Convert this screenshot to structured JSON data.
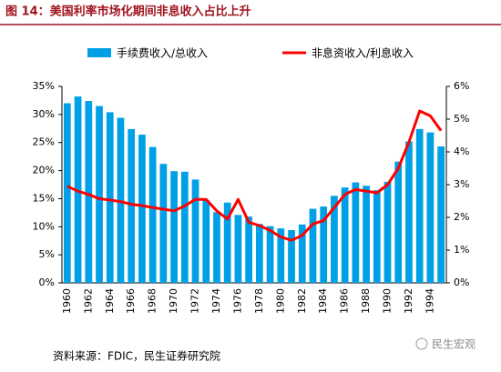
{
  "header": {
    "title": "图 14：美国利率市场化期间非息收入占比上升"
  },
  "chart_data": {
    "type": "bar-line",
    "categories": [
      "1960",
      null,
      "1962",
      null,
      "1964",
      null,
      "1966",
      null,
      "1968",
      null,
      "1970",
      null,
      "1972",
      null,
      "1974",
      null,
      "1976",
      null,
      "1978",
      null,
      "1980",
      null,
      "1982",
      null,
      "1984",
      null,
      "1986",
      null,
      "1988",
      null,
      "1990",
      null,
      "1992",
      null,
      "1994",
      null
    ],
    "series": [
      {
        "name": "手续费收入/总收入",
        "type": "bar",
        "color": "#00a0e6",
        "values": [
          32,
          33.2,
          32.4,
          31.5,
          30.4,
          29.4,
          27.4,
          26.4,
          24.2,
          21.2,
          19.9,
          19.8,
          18.4,
          14.7,
          12.6,
          14.3,
          12.1,
          11.8,
          10.5,
          10.1,
          9.7,
          9.4,
          10.4,
          13.2,
          13.6,
          15.5,
          17.0,
          17.9,
          17.3,
          16.5,
          18.0,
          21.6,
          25.2,
          27.4,
          26.8,
          24.3
        ]
      },
      {
        "name": "非息资收入/利息收入",
        "type": "line",
        "axis": "y2",
        "color": "#ff0000",
        "values": [
          2.95,
          2.8,
          2.7,
          2.57,
          2.53,
          2.48,
          2.4,
          2.36,
          2.3,
          2.25,
          2.2,
          2.35,
          2.55,
          2.55,
          2.2,
          1.95,
          2.55,
          1.85,
          1.75,
          1.6,
          1.4,
          1.3,
          1.45,
          1.8,
          1.9,
          2.3,
          2.7,
          2.85,
          2.8,
          2.75,
          3.0,
          3.5,
          4.3,
          5.25,
          5.1,
          4.65
        ]
      }
    ],
    "ylim": [
      0,
      35
    ],
    "yticks": [
      {
        "value": 0,
        "label": "0%"
      },
      {
        "value": 5,
        "label": "5%"
      },
      {
        "value": 10,
        "label": "10%"
      },
      {
        "value": 15,
        "label": "15%"
      },
      {
        "value": 20,
        "label": "20%"
      },
      {
        "value": 25,
        "label": "25%"
      },
      {
        "value": 30,
        "label": "30%"
      },
      {
        "value": 35,
        "label": "35%"
      }
    ],
    "y2lim": [
      0,
      6
    ],
    "y2ticks": [
      {
        "value": 0,
        "label": "0%"
      },
      {
        "value": 1,
        "label": "1%"
      },
      {
        "value": 2,
        "label": "2%"
      },
      {
        "value": 3,
        "label": "3%"
      },
      {
        "value": 4,
        "label": "4%"
      },
      {
        "value": 5,
        "label": "5%"
      },
      {
        "value": 6,
        "label": "6%"
      }
    ],
    "legend": "top"
  },
  "footer": {
    "source": "资料来源：FDIC，民生证券研究院",
    "watermark": "民生宏观"
  }
}
